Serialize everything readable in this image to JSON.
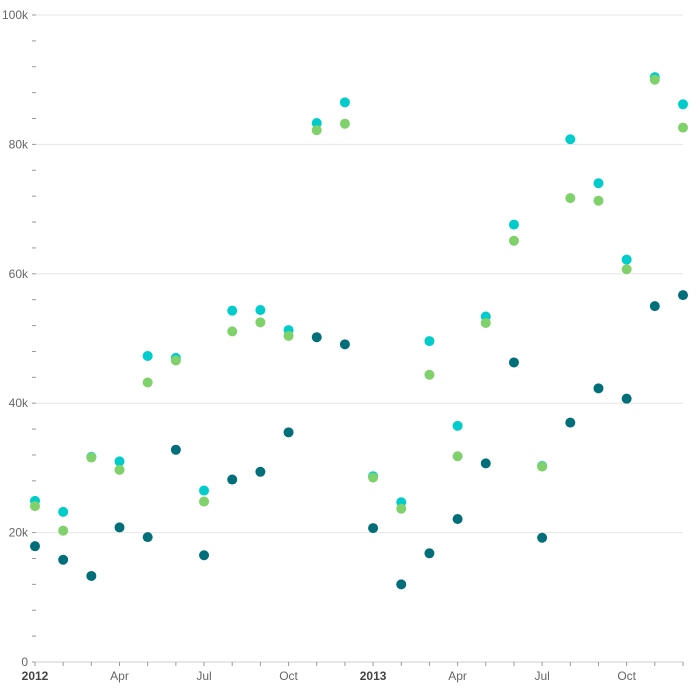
{
  "chart_data": {
    "type": "scatter",
    "title": "",
    "xlabel": "",
    "ylabel": "",
    "ylim": [
      0,
      100000
    ],
    "grid": true,
    "legend": "none",
    "x": [
      "2012-01",
      "2012-02",
      "2012-03",
      "2012-04",
      "2012-05",
      "2012-06",
      "2012-07",
      "2012-08",
      "2012-09",
      "2012-10",
      "2012-11",
      "2012-12",
      "2013-01",
      "2013-02",
      "2013-03",
      "2013-04",
      "2013-05",
      "2013-06",
      "2013-07",
      "2013-08",
      "2013-09",
      "2013-10",
      "2013-11",
      "2013-12"
    ],
    "x_tick_labels": [
      {
        "label": "2012",
        "x": "2012-01",
        "bold": true
      },
      {
        "label": "Apr",
        "x": "2012-04",
        "bold": false
      },
      {
        "label": "Jul",
        "x": "2012-07",
        "bold": false
      },
      {
        "label": "Oct",
        "x": "2012-10",
        "bold": false
      },
      {
        "label": "2013",
        "x": "2013-01",
        "bold": true
      },
      {
        "label": "Apr",
        "x": "2013-04",
        "bold": false
      },
      {
        "label": "Jul",
        "x": "2013-07",
        "bold": false
      },
      {
        "label": "Oct",
        "x": "2013-10",
        "bold": false
      }
    ],
    "y_tick_labels": [
      {
        "label": "0",
        "value": 0
      },
      {
        "label": "20k",
        "value": 20000
      },
      {
        "label": "40k",
        "value": 40000
      },
      {
        "label": "60k",
        "value": 60000
      },
      {
        "label": "80k",
        "value": 80000
      },
      {
        "label": "100k",
        "value": 100000
      }
    ],
    "series": [
      {
        "color": "#00cccc",
        "values": [
          24900,
          23200,
          31700,
          31000,
          47300,
          47000,
          26500,
          54300,
          54400,
          51300,
          83300,
          86500,
          28700,
          24700,
          49600,
          36500,
          53400,
          67600,
          30300,
          80800,
          74000,
          62200,
          90400,
          86200
        ]
      },
      {
        "color": "#7fd16a",
        "values": [
          24100,
          20300,
          31600,
          29700,
          43200,
          46600,
          24800,
          51100,
          52500,
          50400,
          82200,
          83200,
          28500,
          23700,
          44400,
          31800,
          52400,
          65100,
          30200,
          71700,
          71300,
          60700,
          90000,
          82600
        ]
      },
      {
        "color": "#006f7a",
        "values": [
          17900,
          15800,
          13300,
          20800,
          19300,
          32800,
          16500,
          28200,
          29400,
          35500,
          50200,
          49100,
          20700,
          12000,
          16800,
          22100,
          30700,
          46300,
          19200,
          37000,
          42300,
          40700,
          55000,
          56700
        ]
      }
    ]
  }
}
